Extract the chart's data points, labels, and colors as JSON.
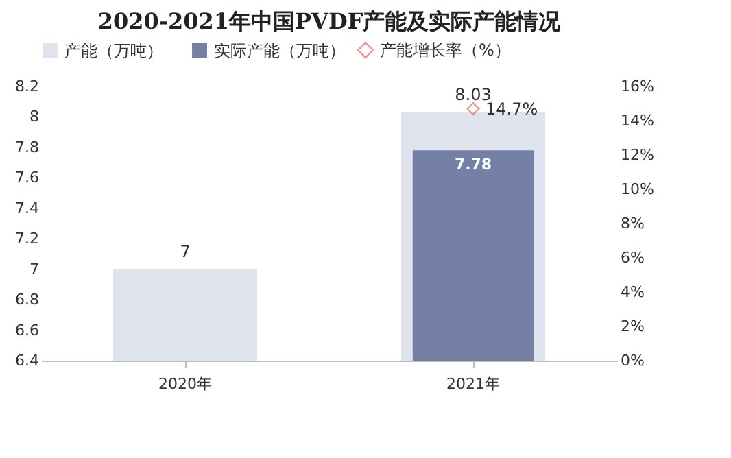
{
  "chart_data": {
    "type": "bar",
    "title": "2020-2021年中国PVDF产能及实际产能情况",
    "categories": [
      "2020年",
      "2021年"
    ],
    "series": [
      {
        "name": "产能（万吨）",
        "color": "#dfe3ee",
        "values": [
          7,
          8.03
        ],
        "value_labels": [
          "7",
          "8.03"
        ]
      },
      {
        "name": "实际产能（万吨）",
        "color": "#7580a6",
        "values": [
          null,
          7.78
        ],
        "value_labels": [
          null,
          "7.78"
        ]
      },
      {
        "name": "产能增长率（%）",
        "type": "scatter",
        "axis": "y2",
        "color": "#e26b5d",
        "values": [
          null,
          14.7
        ],
        "value_labels": [
          null,
          "14.7%"
        ]
      }
    ],
    "ylim": [
      6.4,
      8.2
    ],
    "yticks": [
      6.4,
      6.6,
      6.8,
      7,
      7.2,
      7.4,
      7.6,
      7.8,
      8,
      8.2
    ],
    "y2lim": [
      0,
      16
    ],
    "y2ticks": [
      {
        "value": 0,
        "label": "0%"
      },
      {
        "value": 2,
        "label": "2%"
      },
      {
        "value": 4,
        "label": "4%"
      },
      {
        "value": 6,
        "label": "6%"
      },
      {
        "value": 8,
        "label": "8%"
      },
      {
        "value": 10,
        "label": "10%"
      },
      {
        "value": 12,
        "label": "12%"
      },
      {
        "value": 14,
        "label": "14%"
      },
      {
        "value": 16,
        "label": "16%"
      }
    ],
    "legend": "top",
    "marker": "diamond"
  }
}
